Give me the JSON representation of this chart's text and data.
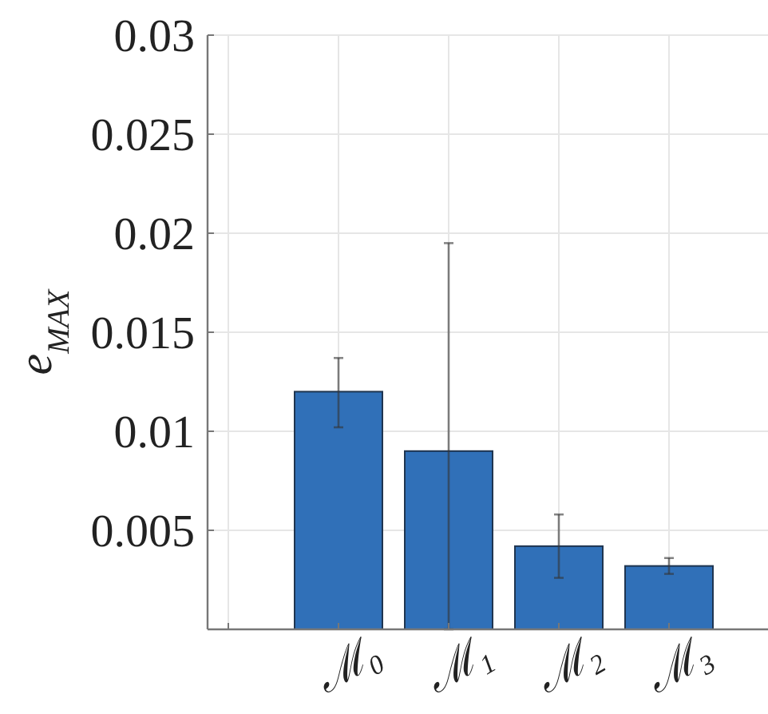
{
  "chart_data": {
    "type": "bar",
    "ylabel": "e$_{MAX}$",
    "categories": [
      null,
      "ℳ₀",
      "ℳ₁",
      "ℳ₂",
      "ℳ₃"
    ],
    "values": [
      null,
      0.012,
      0.009,
      0.0042,
      0.0032
    ],
    "errors": [
      null,
      [
        0.0102,
        0.0137
      ],
      [
        0,
        0.0195
      ],
      [
        0.0026,
        0.0058
      ],
      [
        0.0028,
        0.0036
      ]
    ],
    "color": "#3070b8",
    "ylim": [
      0,
      0.03
    ],
    "yticks": [
      0.005,
      0.01,
      0.015,
      0.02,
      0.025,
      0.03
    ],
    "grid": true
  }
}
